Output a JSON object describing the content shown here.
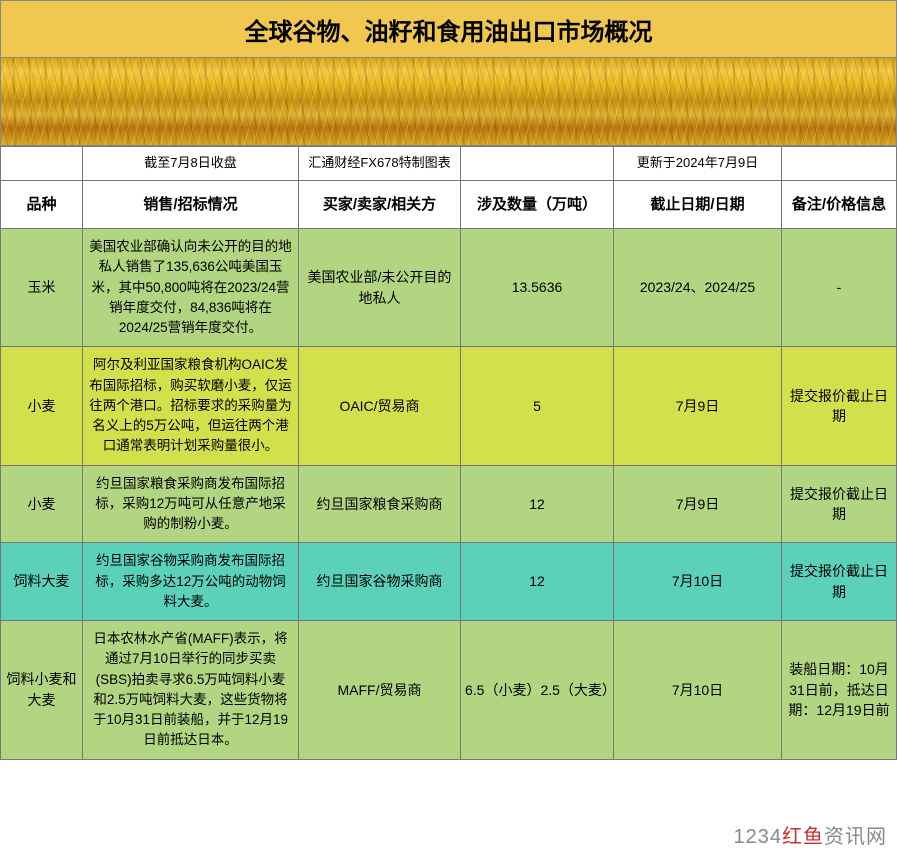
{
  "title": "全球谷物、油籽和食用油出口市场概况",
  "meta": {
    "left": "截至7月8日收盘",
    "center": "汇通财经FX678特制图表",
    "right": "更新于2024年7月9日"
  },
  "headers": {
    "c1": "品种",
    "c2": "销售/招标情况",
    "c3": "买家/卖家/相关方",
    "c4": "涉及数量（万吨）",
    "c5": "截止日期/日期",
    "c6": "备注/价格信息"
  },
  "colors": {
    "title_bg": "#f0c74f",
    "row_green": "#b1d580",
    "row_yellow": "#d3e04b",
    "row_teal": "#5bd1b9",
    "border": "#777777"
  },
  "rows": [
    {
      "row_color": "row-green",
      "commodity": "玉米",
      "description": "美国农业部确认向未公开的目的地私人销售了135,636公吨美国玉米，其中50,800吨将在2023/24营销年度交付，84,836吨将在2024/25营销年度交付。",
      "party": "美国农业部/未公开目的地私人",
      "quantity": "13.5636",
      "date": "2023/24、2024/25",
      "note": "-"
    },
    {
      "row_color": "row-yellow",
      "commodity": "小麦",
      "description": "阿尔及利亚国家粮食机构OAIC发布国际招标，购买软磨小麦，仅运往两个港口。招标要求的采购量为名义上的5万公吨，但运往两个港口通常表明计划采购量很小。",
      "party": "OAIC/贸易商",
      "quantity": "5",
      "date": "7月9日",
      "note": "提交报价截止日期"
    },
    {
      "row_color": "row-green",
      "commodity": "小麦",
      "description": "约旦国家粮食采购商发布国际招标，采购12万吨可从任意产地采购的制粉小麦。",
      "party": "约旦国家粮食采购商",
      "quantity": "12",
      "date": "7月9日",
      "note": "提交报价截止日期"
    },
    {
      "row_color": "row-teal",
      "commodity": "饲料大麦",
      "description": "约旦国家谷物采购商发布国际招标，采购多达12万公吨的动物饲料大麦。",
      "party": "约旦国家谷物采购商",
      "quantity": "12",
      "date": "7月10日",
      "note": "提交报价截止日期"
    },
    {
      "row_color": "row-green",
      "commodity": "饲料小麦和大麦",
      "description": "日本农林水产省(MAFF)表示，将通过7月10日举行的同步买卖(SBS)拍卖寻求6.5万吨饲料小麦和2.5万吨饲料大麦，这些货物将于10月31日前装船，并于12月19日前抵达日本。",
      "party": "MAFF/贸易商",
      "quantity": "6.5（小麦）2.5（大麦）",
      "date": "7月10日",
      "note": "装船日期：10月31日前，抵达日期：12月19日前"
    }
  ],
  "watermark": {
    "prefix": "1234",
    "red": "红鱼",
    "suffix": "资讯网"
  }
}
